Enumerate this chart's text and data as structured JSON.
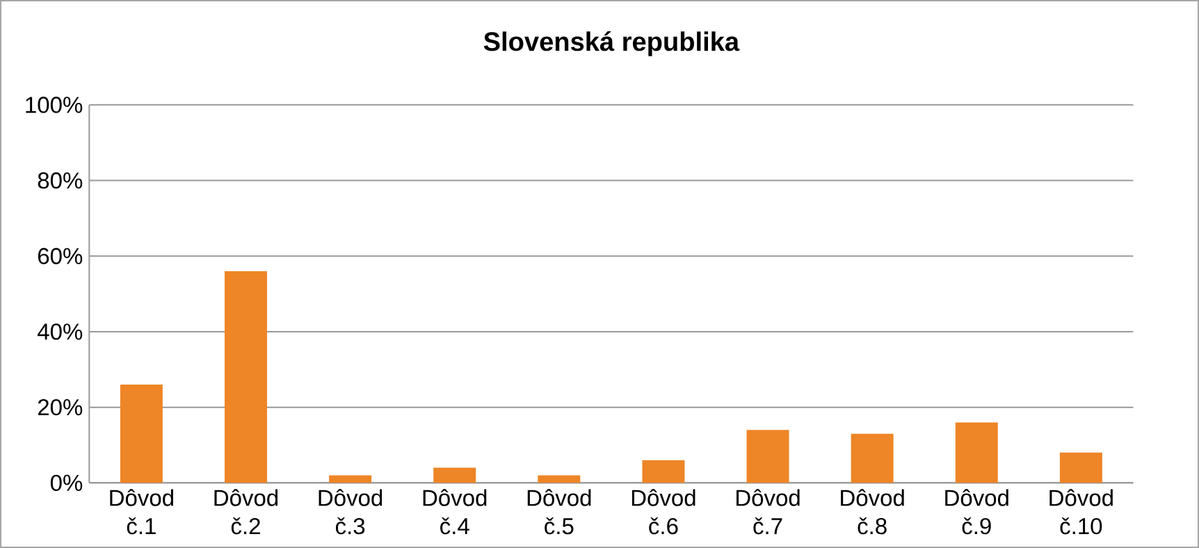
{
  "chart_data": {
    "type": "bar",
    "title": "Slovenská republika",
    "categories": [
      "Dôvod č.1",
      "Dôvod č.2",
      "Dôvod č.3",
      "Dôvod č.4",
      "Dôvod č.5",
      "Dôvod č.6",
      "Dôvod č.7",
      "Dôvod č.8",
      "Dôvod č.9",
      "Dôvod č.10"
    ],
    "values": [
      26,
      56,
      2,
      4,
      2,
      6,
      14,
      13,
      16,
      8
    ],
    "color": "#ee8526",
    "ylim": [
      0,
      100
    ],
    "yticks": [
      {
        "value": 0,
        "label": "0%"
      },
      {
        "value": 20,
        "label": "20%"
      },
      {
        "value": 40,
        "label": "40%"
      },
      {
        "value": 60,
        "label": "60%"
      },
      {
        "value": 80,
        "label": "80%"
      },
      {
        "value": 100,
        "label": "100%"
      }
    ],
    "grid": "y"
  }
}
